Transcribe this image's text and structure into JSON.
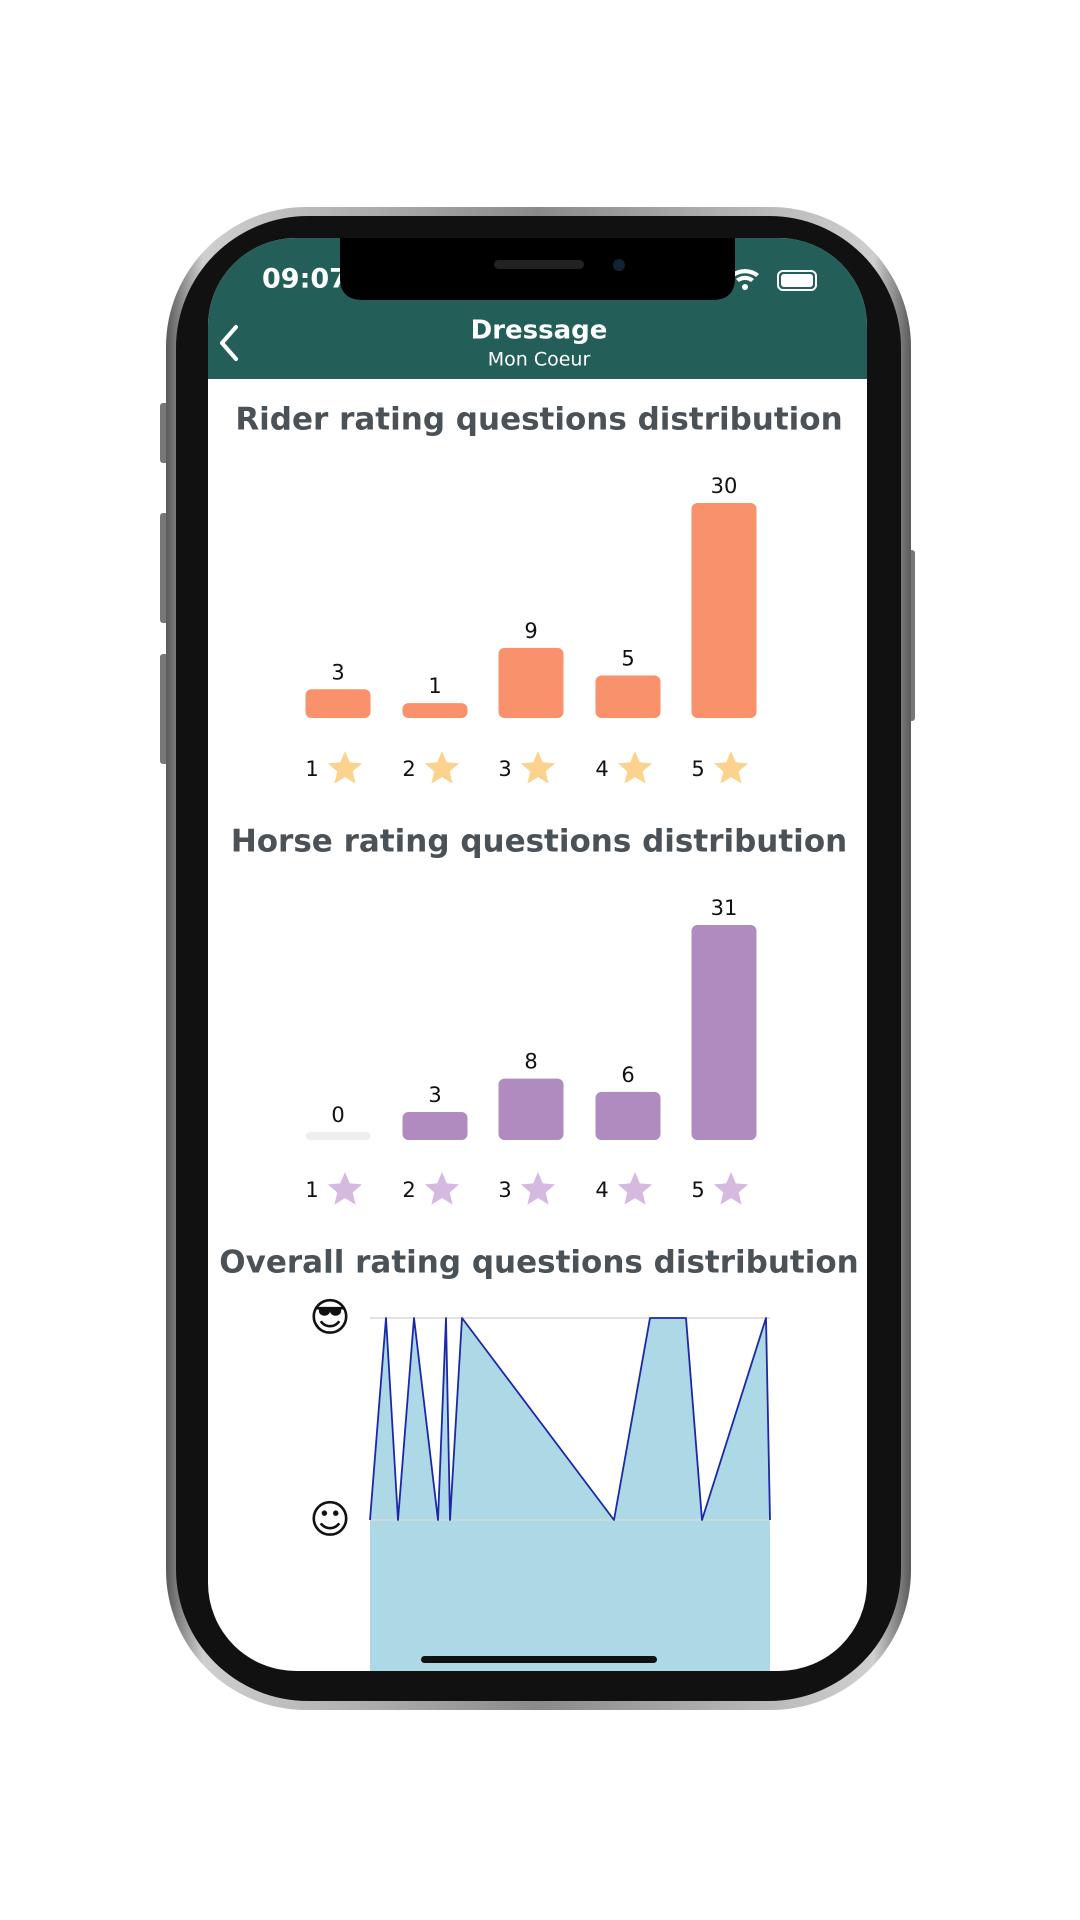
{
  "status_bar": {
    "time": "09:07"
  },
  "header": {
    "title": "Dressage",
    "subtitle": "Mon Coeur"
  },
  "chart_data": [
    {
      "type": "bar",
      "title": "Rider rating questions distribution",
      "categories": [
        "1",
        "2",
        "3",
        "4",
        "5"
      ],
      "values": [
        3,
        1,
        9,
        5,
        30
      ],
      "color": "#f9926c",
      "star_color": "#fbd38d",
      "ylim": [
        0,
        30
      ]
    },
    {
      "type": "bar",
      "title": "Horse rating questions distribution",
      "categories": [
        "1",
        "2",
        "3",
        "4",
        "5"
      ],
      "values": [
        0,
        3,
        8,
        6,
        31
      ],
      "color": "#b08bbf",
      "star_color": "#d6b9de",
      "ylim": [
        0,
        31
      ]
    },
    {
      "type": "area",
      "title": "Overall rating questions distribution",
      "x": [
        0,
        4,
        7,
        11,
        17,
        19,
        20,
        23,
        61,
        70,
        79,
        83,
        99,
        100
      ],
      "values": [
        4,
        5,
        4,
        5,
        4,
        5,
        4,
        5,
        4,
        5,
        5,
        4,
        5,
        4
      ],
      "xlim": [
        0,
        100
      ],
      "ylim": [
        3,
        5
      ],
      "yticks": [
        {
          "value": 5,
          "label": "😎"
        },
        {
          "value": 4,
          "label": "☺"
        }
      ],
      "color": "#add8e6",
      "line_color": "#1c28a8",
      "grid": true
    }
  ]
}
